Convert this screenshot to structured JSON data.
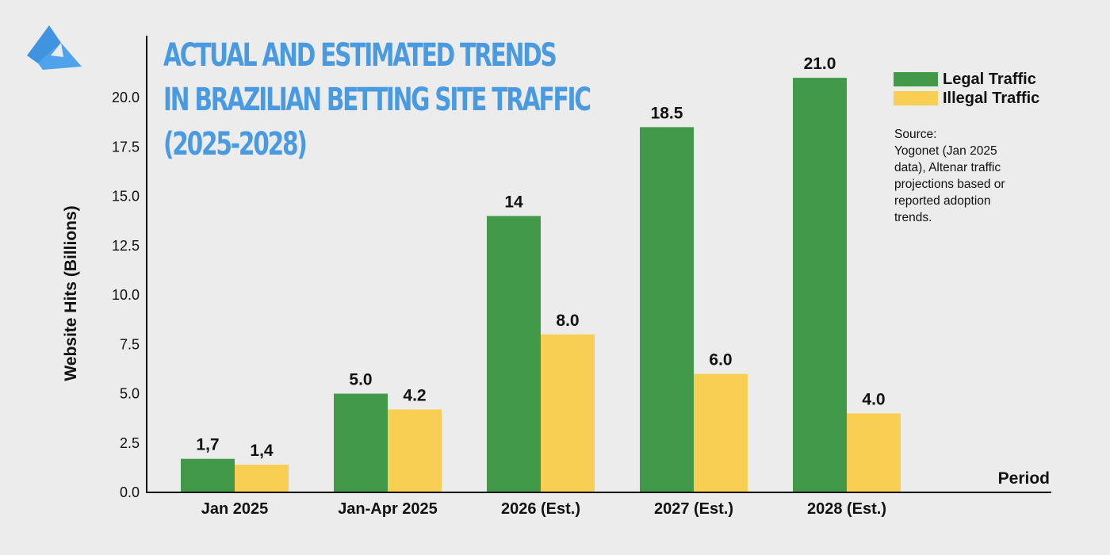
{
  "chart_data": {
    "type": "bar",
    "title": [
      "ACTUAL AND ESTIMATED TRENDS",
      "IN BRAZILIAN BETTING SITE TRAFFIC",
      "(2025-2028)"
    ],
    "xlabel": "Period",
    "ylabel": "Website Hits (Billions)",
    "categories": [
      "Jan 2025",
      "Jan-Apr 2025",
      "2026 (Est.)",
      "2027 (Est.)",
      "2028 (Est.)"
    ],
    "series": [
      {
        "name": "Legal Traffic",
        "color": "#42994a",
        "values": [
          1.7,
          5.0,
          14,
          18.5,
          21.0
        ],
        "labels": [
          "1,7",
          "5.0",
          "14",
          "18.5",
          "21.0"
        ]
      },
      {
        "name": "Illegal Traffic",
        "color": "#f8cf52",
        "values": [
          1.4,
          4.2,
          8.0,
          6.0,
          4.0
        ],
        "labels": [
          "1,4",
          "4.2",
          "8.0",
          "6.0",
          "4.0"
        ]
      }
    ],
    "yticks": [
      0,
      2.5,
      5,
      7.5,
      10,
      12.5,
      15,
      17.5,
      20
    ],
    "ytick_labels": [
      "0.0",
      "2.5",
      "5.0",
      "7.5",
      "10.0",
      "12.5",
      "15.0",
      "17.5",
      "20.0"
    ],
    "ylim": [
      0,
      22
    ],
    "grid": false,
    "legend_position": "top-right",
    "source_lines": [
      "Source:",
      "Yogonet (Jan 2025",
      "data), Altenar traffic",
      "projections based or",
      "reported adoption",
      "trends."
    ]
  },
  "colors": {
    "title": "#4a9ae0",
    "logo": "#3f93e0",
    "legal": "#42994a",
    "illegal": "#f8cf52",
    "background": "#ececec"
  },
  "logo_icon": "triangle-logo-icon"
}
